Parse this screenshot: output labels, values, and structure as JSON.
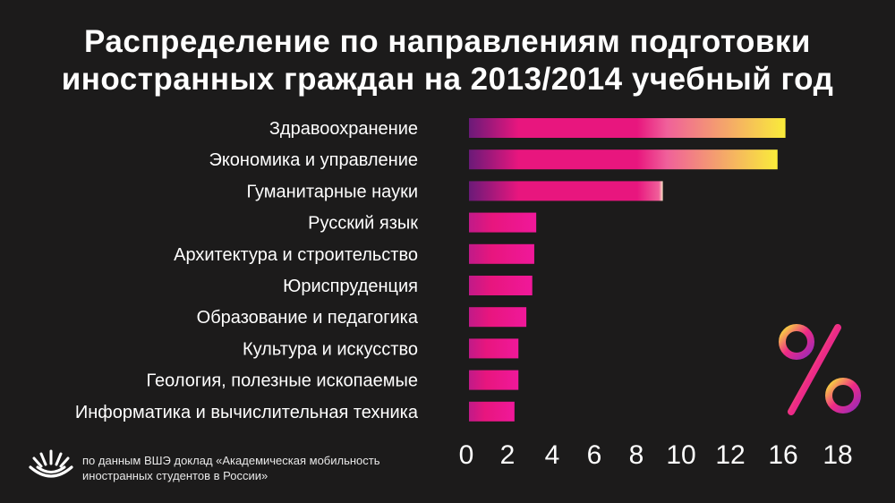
{
  "title_line1": "Распределение по направлениям подготовки",
  "title_line2": "иностранных граждан на 2013/2014 учебный год",
  "source_line1": "по данным ВШЭ доклад «Академическая мобильность",
  "source_line2": "иностранных студентов в России»",
  "colors": {
    "background": "#1c1b1b",
    "bar_dark": "#6a1a78",
    "bar_magenta": "#e8167e",
    "bar_pink": "#f0609a",
    "bar_yellow": "#f9ec3a"
  },
  "icons": {
    "logo": "sun-rays-logo-icon",
    "percent": "percent-icon"
  },
  "chart_data": {
    "type": "bar",
    "orientation": "horizontal",
    "title": "Распределение по направлениям подготовки иностранных граждан на 2013/2014 учебный год",
    "categories": [
      "Здравоохранение",
      "Экономика и управление",
      "Гуманитарные науки",
      "Русский язык",
      "Архитектура и строительство",
      "Юриспруденция",
      "Образование и педагогика",
      "Культура и искусство",
      "Геология, полезные ископаемые",
      "Информатика и вычислительная техника"
    ],
    "values": [
      16.0,
      15.6,
      9.8,
      3.4,
      3.3,
      3.2,
      2.9,
      2.5,
      2.5,
      2.3
    ],
    "xticks": [
      "0",
      "2",
      "4",
      "6",
      "8",
      "10",
      "12",
      "16",
      "18"
    ],
    "xlim": [
      0,
      18
    ],
    "xlabel": "",
    "ylabel": "",
    "grid": false,
    "legend": "none"
  }
}
